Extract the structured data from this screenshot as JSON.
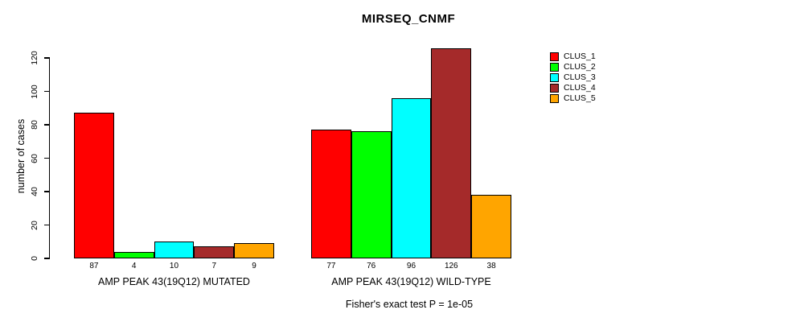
{
  "chart_data": {
    "type": "bar",
    "title": "MIRSEQ_CNMF",
    "ylabel": "number of cases",
    "xlabel": "",
    "ylim": [
      0,
      120
    ],
    "yticks": [
      0,
      20,
      40,
      60,
      80,
      100,
      120
    ],
    "grid": false,
    "legend_position": "right",
    "categories": [
      "AMP PEAK 43(19Q12) MUTATED",
      "AMP PEAK 43(19Q12) WILD-TYPE"
    ],
    "series": [
      {
        "name": "CLUS_1",
        "color": "#FF0000",
        "values": [
          87,
          77
        ]
      },
      {
        "name": "CLUS_2",
        "color": "#00FF00",
        "values": [
          4,
          76
        ]
      },
      {
        "name": "CLUS_3",
        "color": "#00FFFF",
        "values": [
          10,
          96
        ]
      },
      {
        "name": "CLUS_4",
        "color": "#A52A2A",
        "values": [
          7,
          126
        ]
      },
      {
        "name": "CLUS_5",
        "color": "#FFA500",
        "values": [
          9,
          38
        ]
      }
    ],
    "bar_value_labels": [
      [
        87,
        4,
        10,
        7,
        9
      ],
      [
        77,
        76,
        96,
        126,
        38
      ]
    ],
    "annotation": "Fisher's exact test P = 1e-05"
  }
}
